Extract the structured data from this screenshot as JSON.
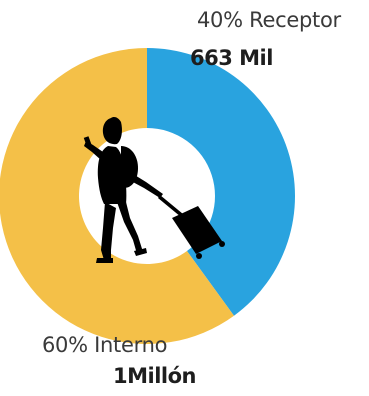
{
  "chart_data": {
    "type": "pie",
    "donut": true,
    "title": "",
    "slices": [
      {
        "name": "Receptor",
        "percent": 40,
        "percent_label": "40% Receptor",
        "value_label": "663 Mil",
        "color": "#29a3df"
      },
      {
        "name": "Interno",
        "percent": 60,
        "percent_label": "60%  Interno",
        "value_label": "1Millón",
        "color": "#f4c048"
      }
    ],
    "center_icon": "traveler-with-suitcase-icon"
  }
}
